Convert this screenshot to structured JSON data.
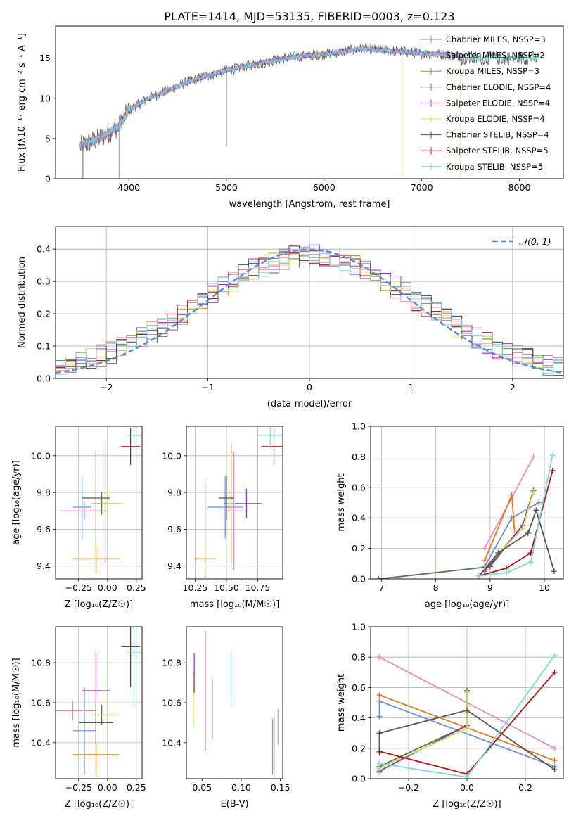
{
  "title": "PLATE=1414, MJD=53135, FIBERID=0003, z=0.123",
  "colors": {
    "Chabrier MILES": "#6b8fd6",
    "Salpeter MILES": "#e78ac3",
    "Kroupa MILES": "#e6761b",
    "Chabrier ELODIE": "#4d7a4d",
    "Salpeter ELODIE": "#8b2fc9",
    "Kroupa ELODIE": "#d4e04a",
    "Chabrier STELIB": "#555555",
    "Salpeter STELIB": "#b01515",
    "Kroupa STELIB": "#7fd6dc",
    "gaussian": "#5b8ad6"
  },
  "chart_data": [
    {
      "id": "spectrum",
      "type": "line",
      "xlabel": "wavelength [Angstrom, rest frame]",
      "ylabel": "Flux [fλ10⁻¹⁷ erg cm⁻² s⁻¹ A⁻¹]",
      "xlim": [
        3250,
        8450
      ],
      "ylim": [
        0,
        19
      ],
      "xticks": [
        4000,
        5000,
        6000,
        7000,
        8000
      ],
      "yticks": [
        0,
        5,
        10,
        15
      ],
      "grid": false,
      "legend_position": "upper-right",
      "legend": [
        {
          "label": "Chabrier MILES, NSSP=3",
          "color": "#6b8fd6"
        },
        {
          "label": "Salpeter MILES, NSSP=2",
          "color": "#e78ac3"
        },
        {
          "label": "Kroupa MILES, NSSP=3",
          "color": "#e6761b"
        },
        {
          "label": "Chabrier ELODIE, NSSP=4",
          "color": "#4d7a4d"
        },
        {
          "label": "Salpeter ELODIE, NSSP=4",
          "color": "#8b2fc9"
        },
        {
          "label": "Kroupa ELODIE, NSSP=4",
          "color": "#d4e04a"
        },
        {
          "label": "Chabrier STELIB, NSSP=4",
          "color": "#555555"
        },
        {
          "label": "Salpeter STELIB, NSSP=5",
          "color": "#b01515"
        },
        {
          "label": "Kroupa STELIB, NSSP=5",
          "color": "#7fd6dc"
        }
      ],
      "continuum": {
        "wavelength": [
          3500,
          3700,
          3900,
          4000,
          4200,
          4400,
          4600,
          4800,
          5000,
          5200,
          5400,
          5600,
          5800,
          6000,
          6200,
          6400,
          6600,
          6800,
          7000,
          7200,
          7400
        ],
        "flux": [
          4.0,
          5.0,
          6.5,
          8.5,
          10.0,
          11.0,
          12.0,
          12.8,
          13.5,
          14.0,
          14.5,
          15.0,
          15.3,
          15.5,
          15.8,
          16.2,
          16.0,
          15.8,
          15.6,
          15.5,
          15.3
        ]
      }
    },
    {
      "id": "residuals",
      "type": "step",
      "xlabel": "(data-model)/error",
      "ylabel": "Normed distribution",
      "xlim": [
        -2.5,
        2.5
      ],
      "ylim": [
        0,
        0.47
      ],
      "xticks": [
        -2,
        -1,
        0,
        1,
        2
      ],
      "yticks": [
        0.0,
        0.1,
        0.2,
        0.3,
        0.4
      ],
      "grid": true,
      "legend_label": "𝒩(0, 1)",
      "gaussian": {
        "mean": 0,
        "sigma": 1
      }
    },
    {
      "id": "age-vs-Z",
      "type": "errorbar",
      "xlabel": "Z [log₁₀(Z/Z☉)]",
      "ylabel": "age  [log₁₀(age/yr)]",
      "xlim": [
        -0.45,
        0.3
      ],
      "ylim": [
        9.33,
        10.16
      ],
      "xticks": [
        -0.25,
        0.0,
        0.25
      ],
      "yticks": [
        9.4,
        9.6,
        9.8,
        10.0
      ],
      "grid": true,
      "points": [
        {
          "model": "Chabrier MILES",
          "x": -0.22,
          "y": 9.72,
          "xerr": 0.08,
          "yerr": 0.17
        },
        {
          "model": "Salpeter MILES",
          "x": -0.2,
          "y": 9.7,
          "xerr": 0.2,
          "yerr": 0.05
        },
        {
          "model": "Kroupa MILES",
          "x": -0.1,
          "y": 9.44,
          "xerr": 0.2,
          "yerr": 0.08
        },
        {
          "model": "Chabrier ELODIE",
          "x": -0.05,
          "y": 9.74,
          "xerr": 0.06,
          "yerr": 0.06
        },
        {
          "model": "Salpeter ELODIE",
          "x": -0.02,
          "y": 9.74,
          "xerr": 0.12,
          "yerr": 0.33
        },
        {
          "model": "Kroupa ELODIE",
          "x": 0.0,
          "y": 9.74,
          "xerr": 0.14,
          "yerr": 0.08
        },
        {
          "model": "Chabrier STELIB",
          "x": -0.1,
          "y": 9.77,
          "xerr": 0.12,
          "yerr": 0.26
        },
        {
          "model": "Salpeter STELIB",
          "x": 0.2,
          "y": 10.05,
          "xerr": 0.08,
          "yerr": 0.1
        },
        {
          "model": "Kroupa STELIB",
          "x": 0.23,
          "y": 10.11,
          "xerr": 0.06,
          "yerr": 0.07
        }
      ]
    },
    {
      "id": "age-vs-mass",
      "type": "errorbar",
      "xlabel": "mass [log₁₀(M/M☉)]",
      "ylabel": "",
      "xlim": [
        10.18,
        10.95
      ],
      "ylim": [
        9.33,
        10.16
      ],
      "xticks": [
        10.25,
        10.5,
        10.75
      ],
      "yticks": [
        9.4,
        9.6,
        9.8,
        10.0
      ],
      "grid": true,
      "points": [
        {
          "model": "Chabrier MILES",
          "x": 10.49,
          "y": 9.72,
          "xerr": 0.14,
          "yerr": 0.17
        },
        {
          "model": "Salpeter MILES",
          "x": 10.56,
          "y": 9.7,
          "xerr": 0.08,
          "yerr": 0.32
        },
        {
          "model": "Kroupa MILES",
          "x": 10.33,
          "y": 9.44,
          "xerr": 0.08,
          "yerr": 0.42
        },
        {
          "model": "Chabrier ELODIE",
          "x": 10.52,
          "y": 9.74,
          "xerr": 0.04,
          "yerr": 0.08
        },
        {
          "model": "Salpeter ELODIE",
          "x": 10.66,
          "y": 9.74,
          "xerr": 0.12,
          "yerr": 0.08
        },
        {
          "model": "Kroupa ELODIE",
          "x": 10.54,
          "y": 9.74,
          "xerr": 0.03,
          "yerr": 0.33
        },
        {
          "model": "Chabrier STELIB",
          "x": 10.5,
          "y": 9.77,
          "xerr": 0.06,
          "yerr": 0.12
        },
        {
          "model": "Salpeter STELIB",
          "x": 10.88,
          "y": 10.05,
          "xerr": 0.1,
          "yerr": 0.1
        },
        {
          "model": "Kroupa STELIB",
          "x": 10.85,
          "y": 10.11,
          "xerr": 0.1,
          "yerr": 0.07
        }
      ]
    },
    {
      "id": "weight-vs-age",
      "type": "line",
      "xlabel": "age  [log₁₀(age/yr)]",
      "ylabel": "mass weight",
      "xlim": [
        6.8,
        10.35
      ],
      "ylim": [
        0,
        1
      ],
      "xticks": [
        7,
        8,
        9,
        10
      ],
      "yticks": [
        0.0,
        0.2,
        0.4,
        0.6,
        0.8,
        1.0
      ],
      "grid": true,
      "series": [
        {
          "model": "Chabrier MILES",
          "x": [
            8.9,
            9.4,
            9.9
          ],
          "y": [
            0.08,
            0.4,
            0.5
          ]
        },
        {
          "model": "Salpeter MILES",
          "x": [
            8.9,
            9.8
          ],
          "y": [
            0.2,
            0.8
          ]
        },
        {
          "model": "Kroupa MILES",
          "x": [
            8.9,
            9.4,
            9.45
          ],
          "y": [
            0.12,
            0.55,
            0.32
          ]
        },
        {
          "model": "Chabrier ELODIE",
          "x": [
            6.95,
            9.0,
            9.6,
            9.8
          ],
          "y": [
            0.0,
            0.08,
            0.35,
            0.58
          ]
        },
        {
          "model": "Salpeter ELODIE",
          "x": [
            8.9,
            9.6,
            9.8
          ],
          "y": [
            0.05,
            0.35,
            0.57
          ]
        },
        {
          "model": "Kroupa ELODIE",
          "x": [
            8.9,
            9.6,
            9.8
          ],
          "y": [
            0.07,
            0.33,
            0.57
          ]
        },
        {
          "model": "Chabrier STELIB",
          "x": [
            8.8,
            9.15,
            9.7,
            9.85,
            10.18
          ],
          "y": [
            0.02,
            0.17,
            0.3,
            0.45,
            0.05
          ]
        },
        {
          "model": "Salpeter STELIB",
          "x": [
            8.8,
            9.3,
            9.75,
            10.15
          ],
          "y": [
            0.02,
            0.07,
            0.17,
            0.71
          ]
        },
        {
          "model": "Kroupa STELIB",
          "x": [
            8.8,
            9.3,
            9.75,
            10.15
          ],
          "y": [
            0.02,
            0.04,
            0.11,
            0.81
          ]
        }
      ]
    },
    {
      "id": "mass-vs-Z",
      "type": "errorbar",
      "xlabel": "Z [log₁₀(Z/Z☉)]",
      "ylabel": "mass [log₁₀(M/M☉)]",
      "xlim": [
        -0.45,
        0.3
      ],
      "ylim": [
        10.22,
        10.98
      ],
      "xticks": [
        -0.25,
        0.0,
        0.25
      ],
      "yticks": [
        10.4,
        10.6,
        10.8
      ],
      "grid": true,
      "points": [
        {
          "model": "Chabrier MILES",
          "x": -0.2,
          "y": 10.46,
          "xerr": 0.1,
          "yerr": 0.22
        },
        {
          "model": "Salpeter MILES",
          "x": -0.3,
          "y": 10.56,
          "xerr": 0.2,
          "yerr": 0.05
        },
        {
          "model": "Kroupa MILES",
          "x": -0.1,
          "y": 10.34,
          "xerr": 0.2,
          "yerr": 0.1
        },
        {
          "model": "Chabrier ELODIE",
          "x": -0.05,
          "y": 10.54,
          "xerr": 0.05,
          "yerr": 0.05
        },
        {
          "model": "Salpeter ELODIE",
          "x": -0.1,
          "y": 10.66,
          "xerr": 0.12,
          "yerr": 0.2
        },
        {
          "model": "Kroupa ELODIE",
          "x": -0.02,
          "y": 10.54,
          "xerr": 0.12,
          "yerr": 0.2
        },
        {
          "model": "Chabrier STELIB",
          "x": -0.1,
          "y": 10.5,
          "xerr": 0.15,
          "yerr": 0.1
        },
        {
          "model": "Salpeter STELIB",
          "x": 0.2,
          "y": 10.88,
          "xerr": 0.08,
          "yerr": 0.2
        },
        {
          "model": "Kroupa STELIB",
          "x": 0.23,
          "y": 10.85,
          "xerr": 0.06,
          "yerr": 0.28
        }
      ]
    },
    {
      "id": "mass-vs-EBV",
      "type": "errorbar",
      "xlabel": "E(B-V)",
      "ylabel": "",
      "xlim": [
        0.03,
        0.153
      ],
      "ylim": [
        10.22,
        10.98
      ],
      "xticks": [
        0.05,
        0.1,
        0.15
      ],
      "yticks": [
        10.4,
        10.6,
        10.8
      ],
      "grid": false,
      "points": [
        {
          "model": "Kroupa ELODIE",
          "x": 0.039,
          "y": 10.62,
          "yerr": 0.14
        },
        {
          "model": "Salpeter ELODIE",
          "x": 0.04,
          "y": 10.75,
          "yerr": 0.1
        },
        {
          "model": "Salpeter STELIB",
          "x": 0.054,
          "y": 10.66,
          "yerr": 0.3
        },
        {
          "model": "Chabrier STELIB",
          "x": 0.063,
          "y": 10.57,
          "yerr": 0.15
        },
        {
          "model": "Kroupa STELIB",
          "x": 0.087,
          "y": 10.72,
          "yerr": 0.14
        },
        {
          "model": "Kroupa MILES",
          "x": 0.14,
          "y": 10.38,
          "yerr": 0.14
        },
        {
          "model": "Chabrier MILES",
          "x": 0.142,
          "y": 10.38,
          "yerr": 0.15
        },
        {
          "model": "Salpeter MILES",
          "x": 0.147,
          "y": 10.48,
          "yerr": 0.09
        }
      ]
    },
    {
      "id": "weight-vs-Z",
      "type": "line",
      "xlabel": "Z [log₁₀(Z/Z☉)]",
      "ylabel": "mass weight",
      "xlim": [
        -0.33,
        0.33
      ],
      "ylim": [
        0,
        1
      ],
      "xticks": [
        -0.2,
        0.0,
        0.2
      ],
      "yticks": [
        0.0,
        0.2,
        0.4,
        0.6,
        0.8,
        1.0
      ],
      "grid": true,
      "series": [
        {
          "model": "Chabrier MILES",
          "x": [
            -0.3,
            -0.3,
            0.3
          ],
          "y": [
            0.41,
            0.51,
            0.08
          ]
        },
        {
          "model": "Salpeter MILES",
          "x": [
            -0.3,
            0.3
          ],
          "y": [
            0.8,
            0.2
          ]
        },
        {
          "model": "Kroupa MILES",
          "x": [
            -0.3,
            0.3
          ],
          "y": [
            0.55,
            0.12
          ]
        },
        {
          "model": "Chabrier ELODIE",
          "x": [
            -0.3,
            0.0,
            0.0
          ],
          "y": [
            0.08,
            0.35,
            0.58
          ]
        },
        {
          "model": "Salpeter ELODIE",
          "x": [
            -0.3,
            0.0,
            0.0
          ],
          "y": [
            0.05,
            0.35,
            0.57
          ]
        },
        {
          "model": "Kroupa ELODIE",
          "x": [
            -0.3,
            0.0,
            0.0
          ],
          "y": [
            0.07,
            0.33,
            0.57
          ]
        },
        {
          "model": "Chabrier STELIB",
          "x": [
            -0.3,
            -0.3,
            0.0,
            0.3
          ],
          "y": [
            0.17,
            0.3,
            0.45,
            0.06
          ]
        },
        {
          "model": "Salpeter STELIB",
          "x": [
            -0.3,
            0.0,
            0.3
          ],
          "y": [
            0.18,
            0.03,
            0.7
          ]
        },
        {
          "model": "Kroupa STELIB",
          "x": [
            -0.3,
            -0.3,
            0.0,
            0.3
          ],
          "y": [
            0.04,
            0.1,
            0.01,
            0.81
          ]
        }
      ]
    }
  ]
}
